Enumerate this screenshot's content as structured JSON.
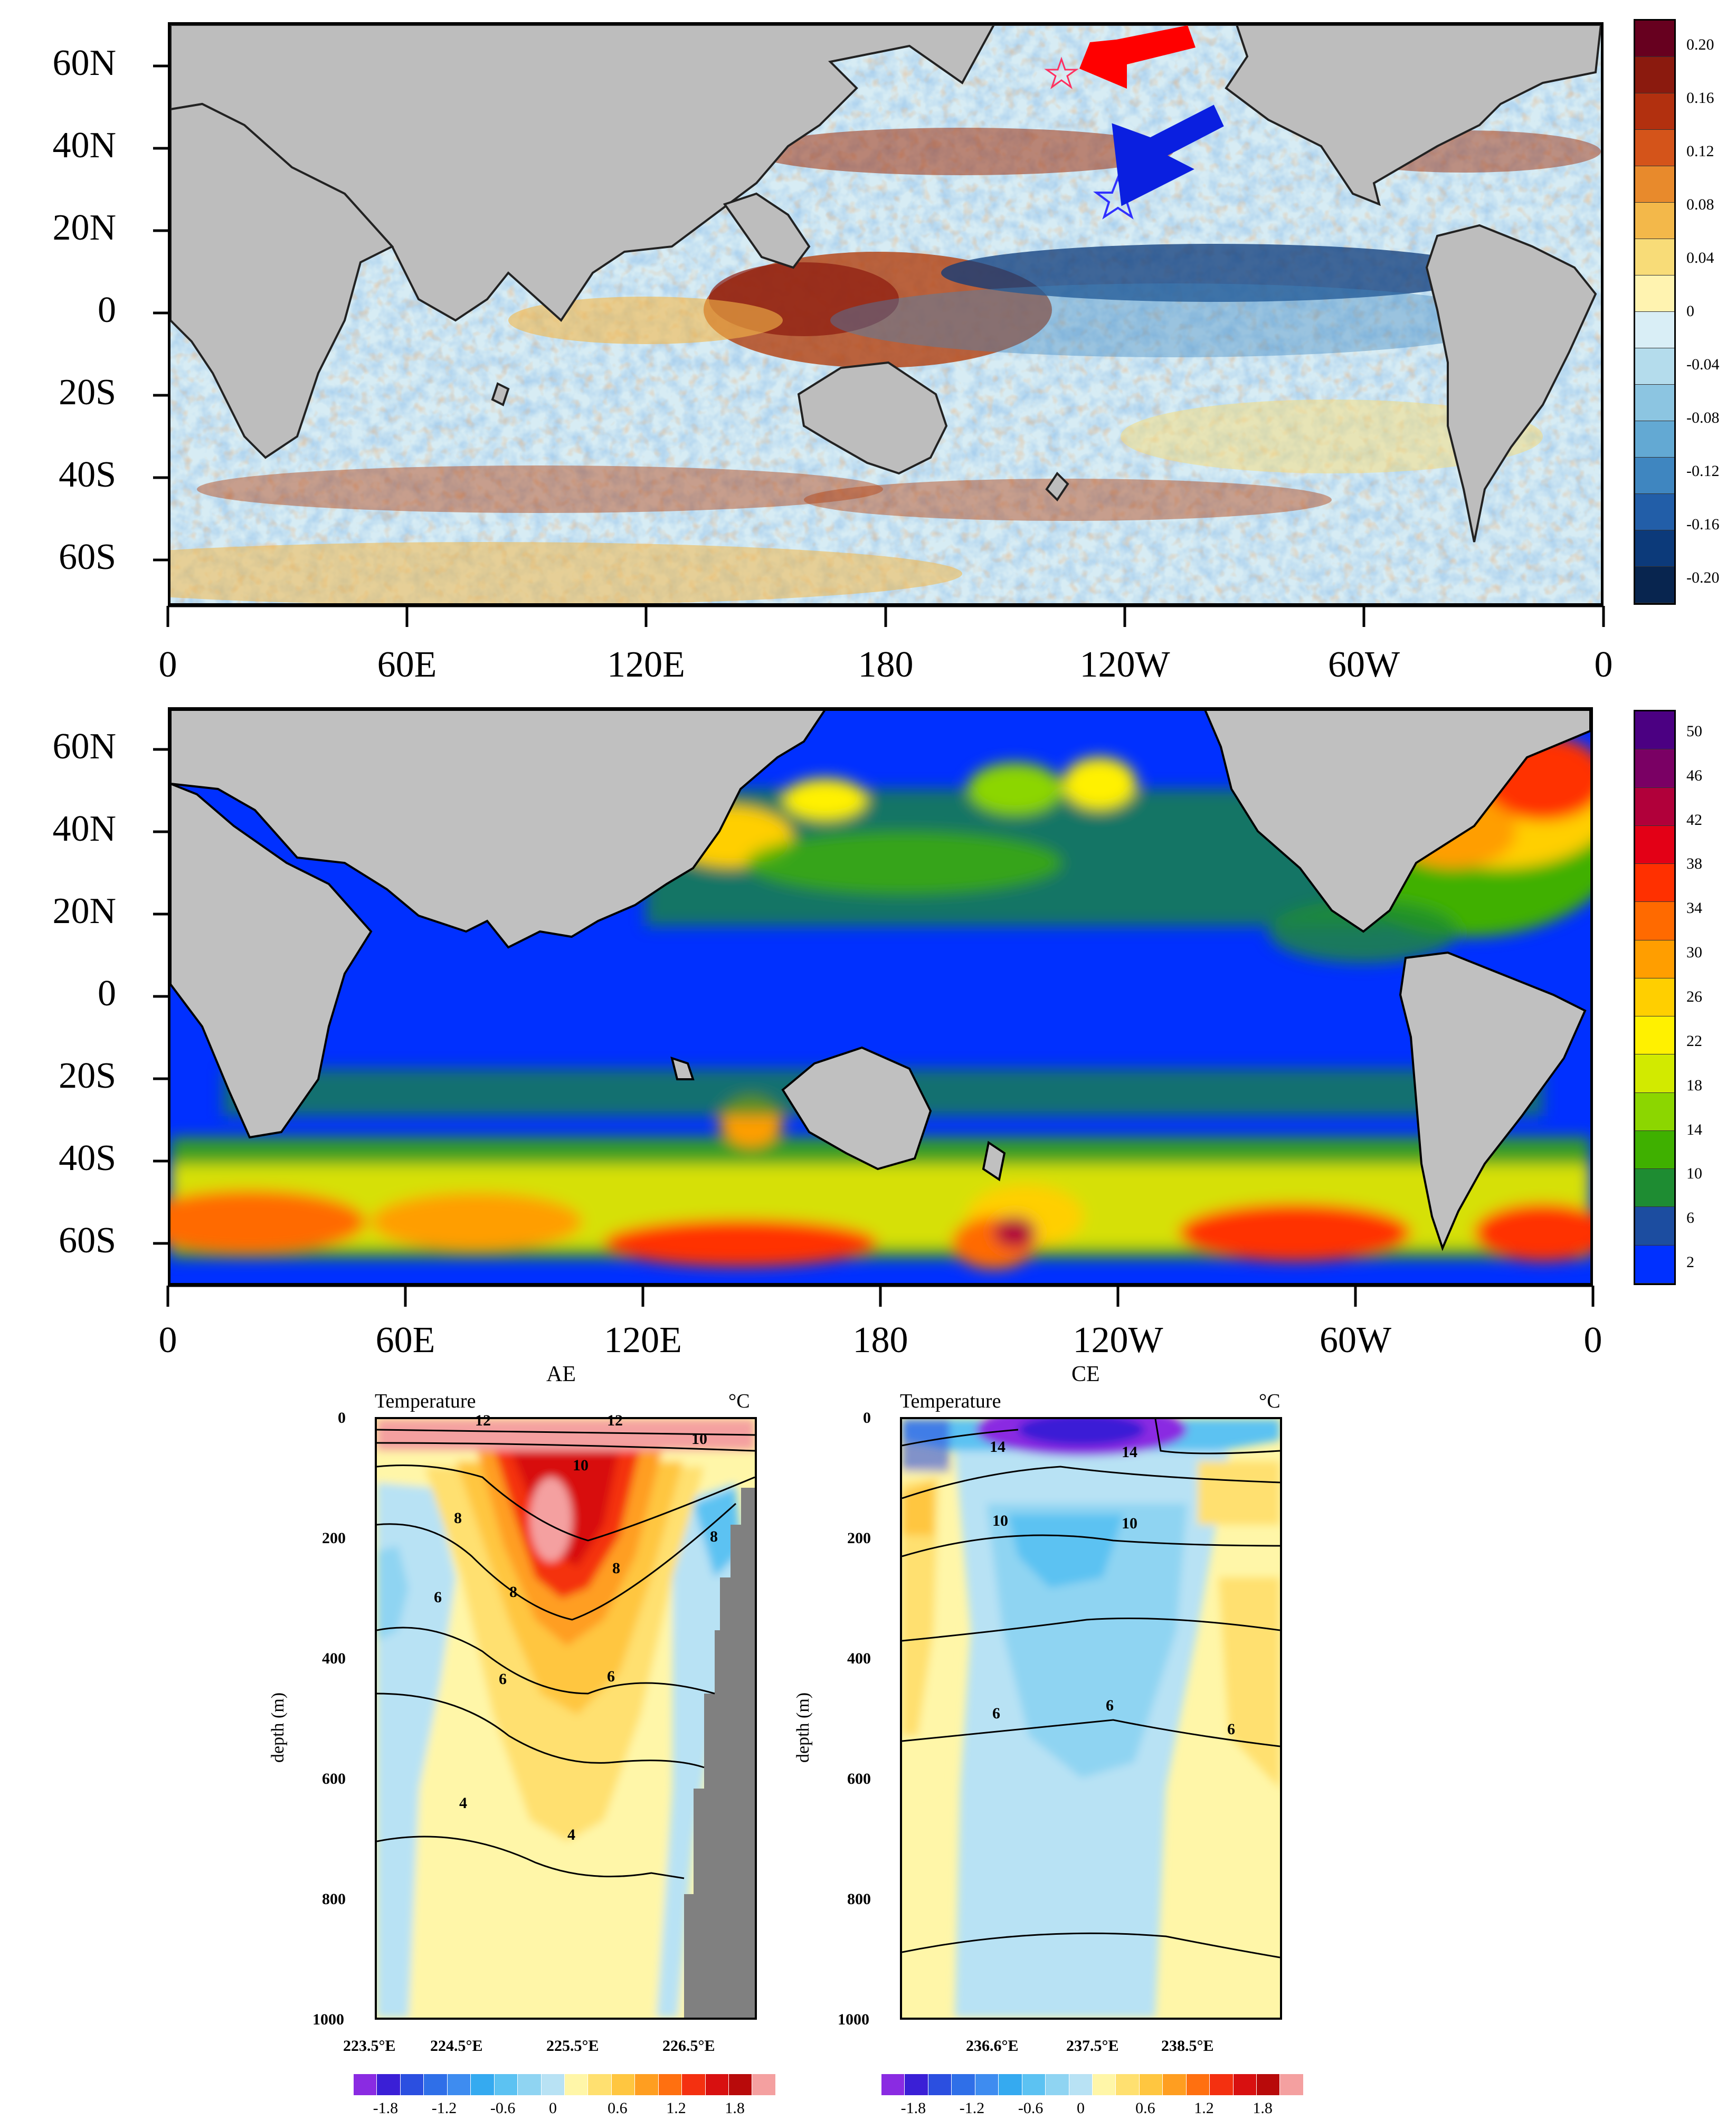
{
  "top_map": {
    "lat_labels": [
      "60N",
      "40N",
      "20N",
      "0",
      "20S",
      "40S",
      "60S"
    ],
    "lon_labels": [
      "0",
      "60E",
      "120E",
      "180",
      "120W",
      "60W",
      "0"
    ],
    "colorbar_labels": [
      "0.20",
      "0.16",
      "0.12",
      "0.08",
      "0.04",
      "0",
      "-0.04",
      "-0.08",
      "-0.12",
      "-0.16",
      "-0.20"
    ],
    "colorbar_colors": [
      "#67001f",
      "#8b1a0e",
      "#b2300f",
      "#d4541a",
      "#e88a2c",
      "#f3b84a",
      "#f8dc78",
      "#fff3b0",
      "#d9eef6",
      "#b4dcec",
      "#8cc5e1",
      "#63a9d3",
      "#3f86c0",
      "#225ea8",
      "#0c3a7a",
      "#08254f"
    ]
  },
  "mid_map": {
    "lat_labels": [
      "60N",
      "40N",
      "20N",
      "0",
      "20S",
      "40S",
      "60S"
    ],
    "lon_labels": [
      "0",
      "60E",
      "120E",
      "180",
      "120W",
      "60W",
      "0"
    ],
    "colorbar_labels": [
      "50",
      "46",
      "42",
      "38",
      "34",
      "30",
      "26",
      "22",
      "18",
      "14",
      "10",
      "6",
      "2"
    ],
    "colorbar_colors": [
      "#4b0082",
      "#7a0064",
      "#b1003a",
      "#e30016",
      "#ff3000",
      "#ff6a00",
      "#ff9e00",
      "#ffcf00",
      "#fff100",
      "#d2ea00",
      "#8cd600",
      "#3fb000",
      "#1e8c32",
      "#1c4da0",
      "#0030ff"
    ]
  },
  "sections": [
    {
      "name": "AE",
      "title": "AE",
      "label_left": "Temperature",
      "label_right": "°C",
      "ylabel": "depth (m)",
      "y_ticks": [
        "0",
        "200",
        "400",
        "600",
        "800",
        "1000"
      ],
      "x_ticks": [
        "223.5°E",
        "224.5°E",
        "225.5°E",
        "226.5°E"
      ],
      "contour_labels": [
        "12",
        "12",
        "10",
        "10",
        "8",
        "8",
        "8",
        "8",
        "6",
        "6",
        "6",
        "4",
        "4"
      ]
    },
    {
      "name": "CE",
      "title": "CE",
      "label_left": "Temperature",
      "label_right": "°C",
      "ylabel": "depth (m)",
      "y_ticks": [
        "0",
        "200",
        "400",
        "600",
        "800",
        "1000"
      ],
      "x_ticks": [
        "236.6°E",
        "237.5°E",
        "238.5°E"
      ],
      "contour_labels": [
        "14",
        "14",
        "10",
        "10",
        "6",
        "6",
        "6"
      ]
    }
  ],
  "section_colorbar": {
    "labels": [
      "-1.8",
      "-1.2",
      "-0.6",
      "0",
      "0.6",
      "1.2",
      "1.8"
    ],
    "colors": [
      "#8a2be2",
      "#3a1fd6",
      "#2b4fe0",
      "#2f6fe8",
      "#3e8cf0",
      "#35aaf0",
      "#5cc2f2",
      "#8fd4f2",
      "#b8e2f4",
      "#fff6a8",
      "#ffe070",
      "#ffc640",
      "#ff9e20",
      "#ff7010",
      "#f43010",
      "#d81010",
      "#b80a0a",
      "#f4a0a0"
    ]
  }
}
